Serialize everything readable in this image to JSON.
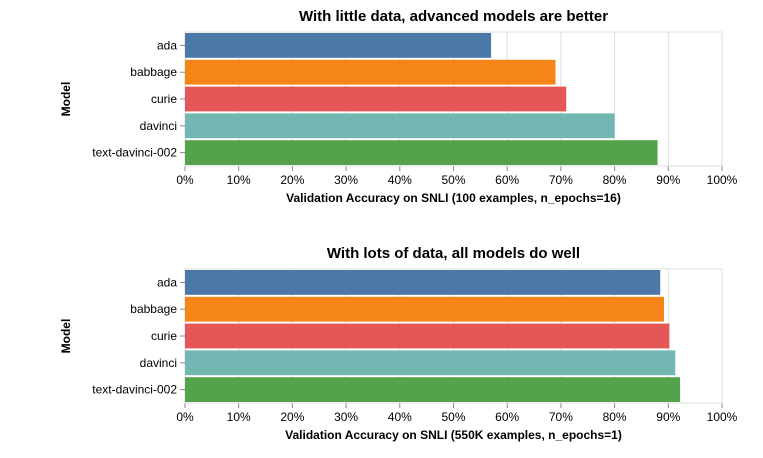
{
  "chart_data": [
    {
      "type": "bar",
      "orientation": "horizontal",
      "title": "With little data, advanced models are better",
      "xlabel": "Validation Accuracy on SNLI (100 examples, n_epochs=16)",
      "ylabel": "Model",
      "categories": [
        "ada",
        "babbage",
        "curie",
        "davinci",
        "text-davinci-002"
      ],
      "values": [
        0.57,
        0.69,
        0.71,
        0.8,
        0.88
      ],
      "colors": [
        "#4c78a8",
        "#f58518",
        "#e45756",
        "#72b7b2",
        "#54a24b"
      ],
      "xlim": [
        0,
        1
      ],
      "x_ticks": [
        "0%",
        "10%",
        "20%",
        "30%",
        "40%",
        "50%",
        "60%",
        "70%",
        "80%",
        "90%",
        "100%"
      ],
      "grid": true
    },
    {
      "type": "bar",
      "orientation": "horizontal",
      "title": "With lots of data, all models do well",
      "xlabel": "Validation Accuracy on SNLI (550K examples, n_epochs=1)",
      "ylabel": "Model",
      "categories": [
        "ada",
        "babbage",
        "curie",
        "davinci",
        "text-davinci-002"
      ],
      "values": [
        0.885,
        0.892,
        0.902,
        0.913,
        0.922
      ],
      "colors": [
        "#4c78a8",
        "#f58518",
        "#e45756",
        "#72b7b2",
        "#54a24b"
      ],
      "xlim": [
        0,
        1
      ],
      "x_ticks": [
        "0%",
        "10%",
        "20%",
        "30%",
        "40%",
        "50%",
        "60%",
        "70%",
        "80%",
        "90%",
        "100%"
      ],
      "grid": true
    }
  ]
}
